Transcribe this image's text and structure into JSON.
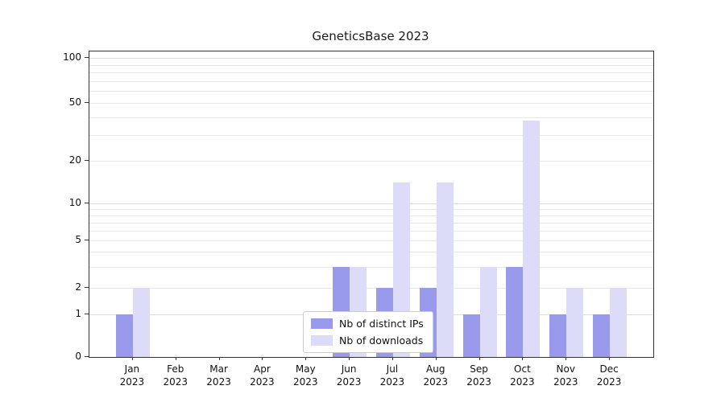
{
  "title": "GeneticsBase 2023",
  "legend": {
    "items": [
      {
        "label": "Nb of distinct IPs",
        "color": "#9a9aec"
      },
      {
        "label": "Nb of downloads",
        "color": "#dcdcf8"
      }
    ]
  },
  "chart_data": {
    "type": "bar",
    "title": "GeneticsBase 2023",
    "categories": [
      "Jan",
      "Feb",
      "Mar",
      "Apr",
      "May",
      "Jun",
      "Jul",
      "Aug",
      "Sep",
      "Oct",
      "Nov",
      "Dec"
    ],
    "year": "2023",
    "series": [
      {
        "name": "Nb of distinct IPs",
        "color": "#9a9aec",
        "values": [
          1,
          0,
          0,
          0,
          0,
          3,
          2,
          2,
          1,
          3,
          1,
          1
        ]
      },
      {
        "name": "Nb of downloads",
        "color": "#dcdcf8",
        "values": [
          2,
          0,
          0,
          0,
          0,
          3,
          14,
          14,
          3,
          38,
          2,
          2
        ]
      }
    ],
    "yscale": "symlog",
    "yticks": [
      0,
      1,
      2,
      5,
      10,
      20,
      50,
      100
    ],
    "ylim": [
      0,
      100
    ],
    "grid": true,
    "legend_position": "lower center"
  }
}
